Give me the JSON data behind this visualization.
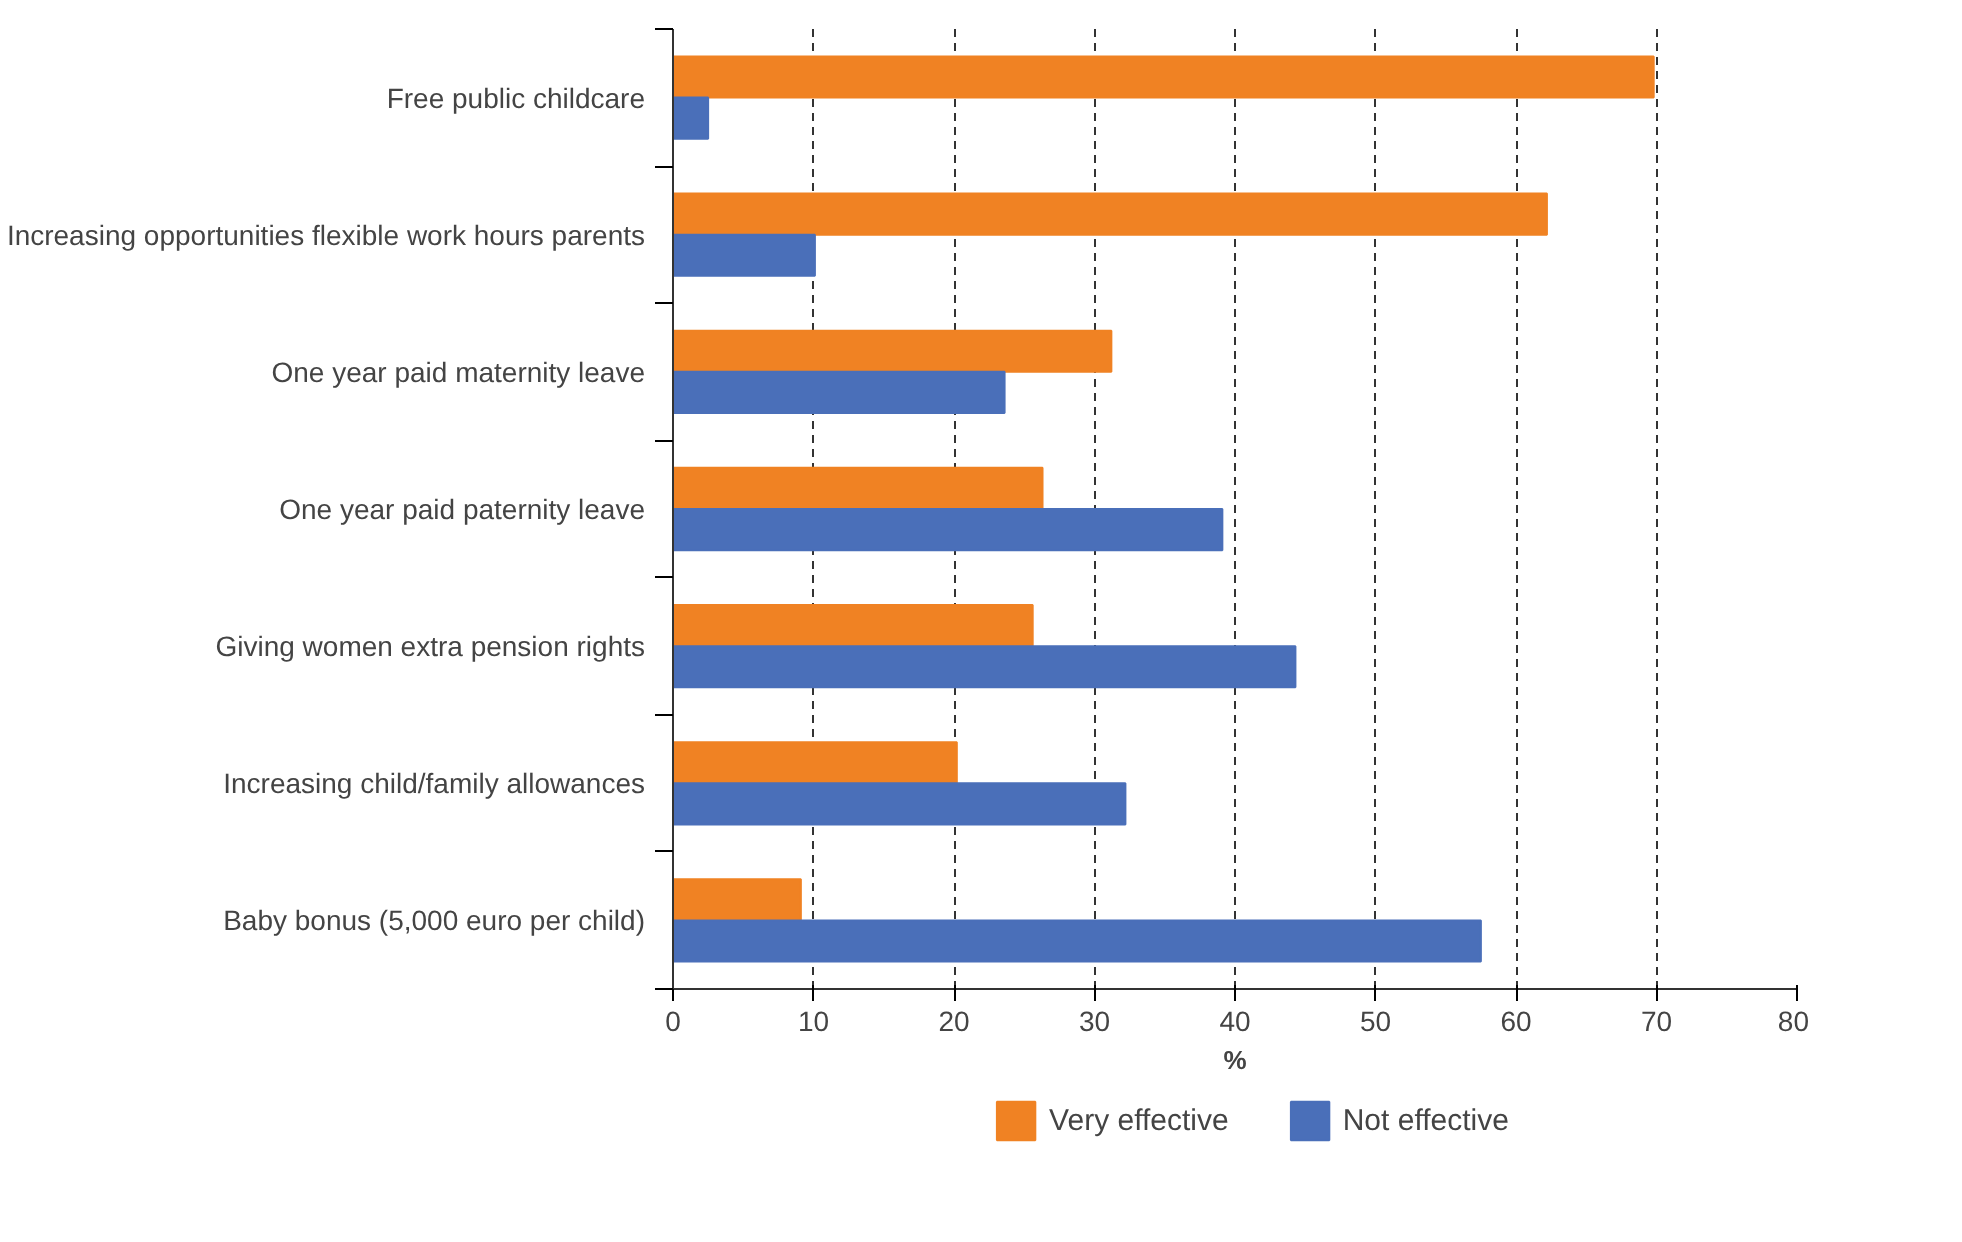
{
  "chart_data": {
    "type": "bar",
    "orientation": "horizontal",
    "xlabel": "%",
    "categories": [
      "Free public childcare",
      "Increasing opportunities flexible work hours parents",
      "One year paid maternity leave",
      "One year paid paternity leave",
      "Giving women extra pension rights",
      "Increasing child/family allowances",
      "Baby bonus (5,000 euro per child)"
    ],
    "series": [
      {
        "name": "Very effective",
        "color": "#f08223",
        "values": [
          69.8,
          62.2,
          31.2,
          26.3,
          25.6,
          20.2,
          9.1
        ]
      },
      {
        "name": "Not effective",
        "color": "#4a6fb9",
        "values": [
          2.5,
          10.1,
          23.6,
          39.1,
          44.3,
          32.2,
          57.5
        ]
      }
    ],
    "xlim": [
      0,
      80
    ],
    "xticks": [
      0,
      10,
      20,
      30,
      40,
      50,
      60,
      70,
      80
    ],
    "grid": "x",
    "legend": "bottom"
  }
}
